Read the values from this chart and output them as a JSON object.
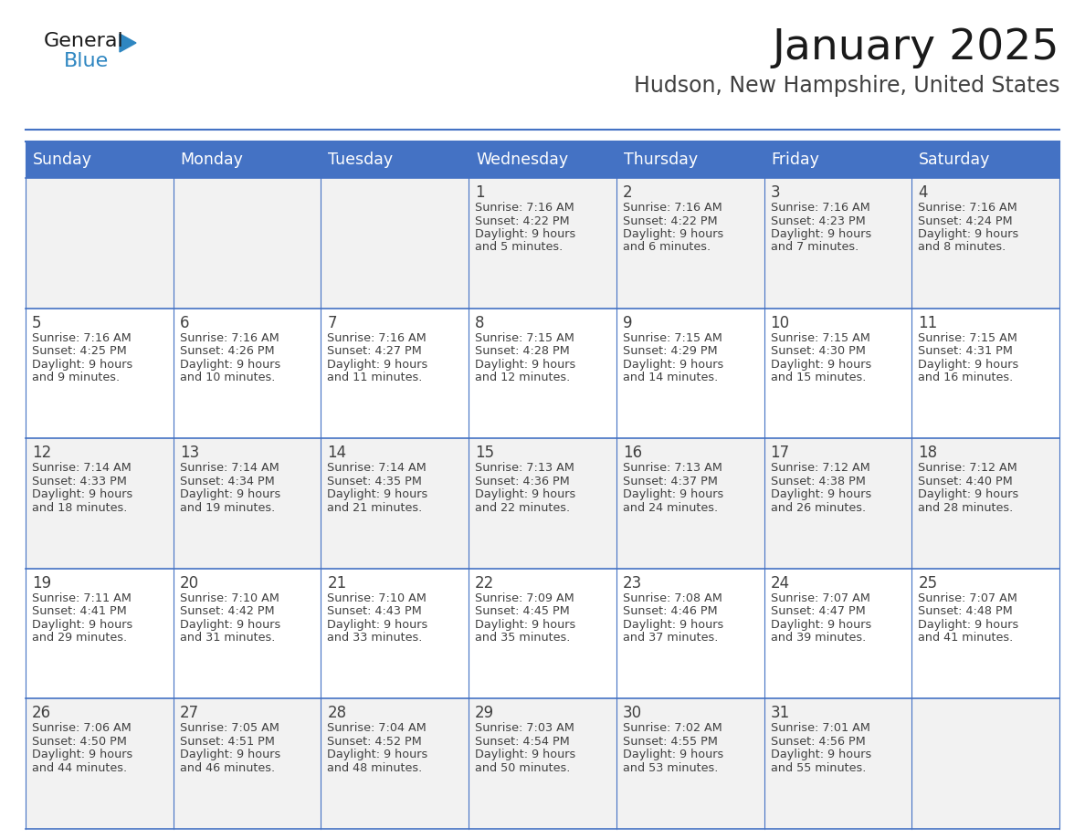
{
  "title": "January 2025",
  "subtitle": "Hudson, New Hampshire, United States",
  "days_of_week": [
    "Sunday",
    "Monday",
    "Tuesday",
    "Wednesday",
    "Thursday",
    "Friday",
    "Saturday"
  ],
  "header_bg": "#4472C4",
  "header_text_color": "#FFFFFF",
  "cell_bg_odd": "#F2F2F2",
  "cell_bg_even": "#FFFFFF",
  "border_color": "#4472C4",
  "text_color": "#404040",
  "title_color": "#1a1a1a",
  "subtitle_color": "#404040",
  "calendar_data": [
    [
      null,
      null,
      null,
      {
        "day": "1",
        "sunrise": "7:16 AM",
        "sunset": "4:22 PM",
        "daylight_hours": "9 hours",
        "daylight_min": "and 5 minutes."
      },
      {
        "day": "2",
        "sunrise": "7:16 AM",
        "sunset": "4:22 PM",
        "daylight_hours": "9 hours",
        "daylight_min": "and 6 minutes."
      },
      {
        "day": "3",
        "sunrise": "7:16 AM",
        "sunset": "4:23 PM",
        "daylight_hours": "9 hours",
        "daylight_min": "and 7 minutes."
      },
      {
        "day": "4",
        "sunrise": "7:16 AM",
        "sunset": "4:24 PM",
        "daylight_hours": "9 hours",
        "daylight_min": "and 8 minutes."
      }
    ],
    [
      {
        "day": "5",
        "sunrise": "7:16 AM",
        "sunset": "4:25 PM",
        "daylight_hours": "9 hours",
        "daylight_min": "and 9 minutes."
      },
      {
        "day": "6",
        "sunrise": "7:16 AM",
        "sunset": "4:26 PM",
        "daylight_hours": "9 hours",
        "daylight_min": "and 10 minutes."
      },
      {
        "day": "7",
        "sunrise": "7:16 AM",
        "sunset": "4:27 PM",
        "daylight_hours": "9 hours",
        "daylight_min": "and 11 minutes."
      },
      {
        "day": "8",
        "sunrise": "7:15 AM",
        "sunset": "4:28 PM",
        "daylight_hours": "9 hours",
        "daylight_min": "and 12 minutes."
      },
      {
        "day": "9",
        "sunrise": "7:15 AM",
        "sunset": "4:29 PM",
        "daylight_hours": "9 hours",
        "daylight_min": "and 14 minutes."
      },
      {
        "day": "10",
        "sunrise": "7:15 AM",
        "sunset": "4:30 PM",
        "daylight_hours": "9 hours",
        "daylight_min": "and 15 minutes."
      },
      {
        "day": "11",
        "sunrise": "7:15 AM",
        "sunset": "4:31 PM",
        "daylight_hours": "9 hours",
        "daylight_min": "and 16 minutes."
      }
    ],
    [
      {
        "day": "12",
        "sunrise": "7:14 AM",
        "sunset": "4:33 PM",
        "daylight_hours": "9 hours",
        "daylight_min": "and 18 minutes."
      },
      {
        "day": "13",
        "sunrise": "7:14 AM",
        "sunset": "4:34 PM",
        "daylight_hours": "9 hours",
        "daylight_min": "and 19 minutes."
      },
      {
        "day": "14",
        "sunrise": "7:14 AM",
        "sunset": "4:35 PM",
        "daylight_hours": "9 hours",
        "daylight_min": "and 21 minutes."
      },
      {
        "day": "15",
        "sunrise": "7:13 AM",
        "sunset": "4:36 PM",
        "daylight_hours": "9 hours",
        "daylight_min": "and 22 minutes."
      },
      {
        "day": "16",
        "sunrise": "7:13 AM",
        "sunset": "4:37 PM",
        "daylight_hours": "9 hours",
        "daylight_min": "and 24 minutes."
      },
      {
        "day": "17",
        "sunrise": "7:12 AM",
        "sunset": "4:38 PM",
        "daylight_hours": "9 hours",
        "daylight_min": "and 26 minutes."
      },
      {
        "day": "18",
        "sunrise": "7:12 AM",
        "sunset": "4:40 PM",
        "daylight_hours": "9 hours",
        "daylight_min": "and 28 minutes."
      }
    ],
    [
      {
        "day": "19",
        "sunrise": "7:11 AM",
        "sunset": "4:41 PM",
        "daylight_hours": "9 hours",
        "daylight_min": "and 29 minutes."
      },
      {
        "day": "20",
        "sunrise": "7:10 AM",
        "sunset": "4:42 PM",
        "daylight_hours": "9 hours",
        "daylight_min": "and 31 minutes."
      },
      {
        "day": "21",
        "sunrise": "7:10 AM",
        "sunset": "4:43 PM",
        "daylight_hours": "9 hours",
        "daylight_min": "and 33 minutes."
      },
      {
        "day": "22",
        "sunrise": "7:09 AM",
        "sunset": "4:45 PM",
        "daylight_hours": "9 hours",
        "daylight_min": "and 35 minutes."
      },
      {
        "day": "23",
        "sunrise": "7:08 AM",
        "sunset": "4:46 PM",
        "daylight_hours": "9 hours",
        "daylight_min": "and 37 minutes."
      },
      {
        "day": "24",
        "sunrise": "7:07 AM",
        "sunset": "4:47 PM",
        "daylight_hours": "9 hours",
        "daylight_min": "and 39 minutes."
      },
      {
        "day": "25",
        "sunrise": "7:07 AM",
        "sunset": "4:48 PM",
        "daylight_hours": "9 hours",
        "daylight_min": "and 41 minutes."
      }
    ],
    [
      {
        "day": "26",
        "sunrise": "7:06 AM",
        "sunset": "4:50 PM",
        "daylight_hours": "9 hours",
        "daylight_min": "and 44 minutes."
      },
      {
        "day": "27",
        "sunrise": "7:05 AM",
        "sunset": "4:51 PM",
        "daylight_hours": "9 hours",
        "daylight_min": "and 46 minutes."
      },
      {
        "day": "28",
        "sunrise": "7:04 AM",
        "sunset": "4:52 PM",
        "daylight_hours": "9 hours",
        "daylight_min": "and 48 minutes."
      },
      {
        "day": "29",
        "sunrise": "7:03 AM",
        "sunset": "4:54 PM",
        "daylight_hours": "9 hours",
        "daylight_min": "and 50 minutes."
      },
      {
        "day": "30",
        "sunrise": "7:02 AM",
        "sunset": "4:55 PM",
        "daylight_hours": "9 hours",
        "daylight_min": "and 53 minutes."
      },
      {
        "day": "31",
        "sunrise": "7:01 AM",
        "sunset": "4:56 PM",
        "daylight_hours": "9 hours",
        "daylight_min": "and 55 minutes."
      },
      null
    ]
  ],
  "logo_general_color": "#1a1a1a",
  "logo_blue_color": "#2E86C1",
  "logo_triangle_color": "#2E86C1",
  "fig_width": 11.88,
  "fig_height": 9.18,
  "dpi": 100
}
